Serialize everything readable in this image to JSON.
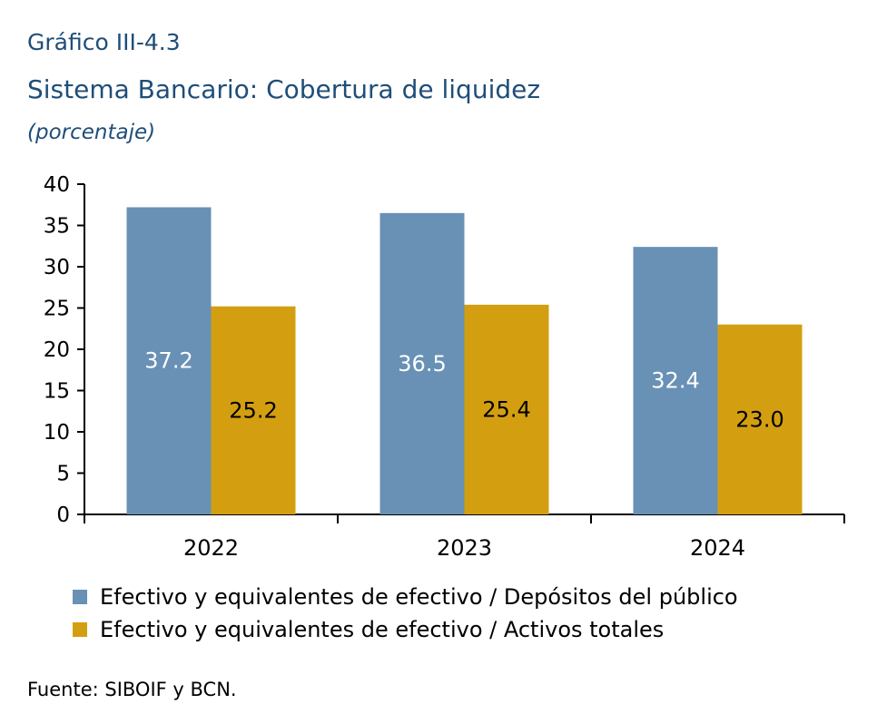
{
  "header": {
    "code": "Gráfico III-4.3",
    "title": "Sistema Bancario: Cobertura de liquidez",
    "unit": "(porcentaje)"
  },
  "source": "Fuente: SIBOIF y BCN.",
  "colors": {
    "series1": "#6891b5",
    "series2": "#d39f10",
    "axis": "#000000"
  },
  "chart_data": {
    "type": "bar",
    "categories": [
      "2022",
      "2023",
      "2024"
    ],
    "series": [
      {
        "name": "Efectivo y equivalentes de efectivo / Depósitos del público",
        "values": [
          37.2,
          36.5,
          32.4
        ],
        "labels": [
          "37.2",
          "36.5",
          "32.4"
        ]
      },
      {
        "name": "Efectivo y equivalentes de efectivo / Activos totales",
        "values": [
          25.2,
          25.4,
          23.0
        ],
        "labels": [
          "25.2",
          "25.4",
          "23.0"
        ]
      }
    ],
    "ylim": [
      0,
      40
    ],
    "yticks": [
      "0",
      "5",
      "10",
      "15",
      "20",
      "25",
      "30",
      "35",
      "40"
    ],
    "grid": false,
    "legend": "bottom"
  }
}
